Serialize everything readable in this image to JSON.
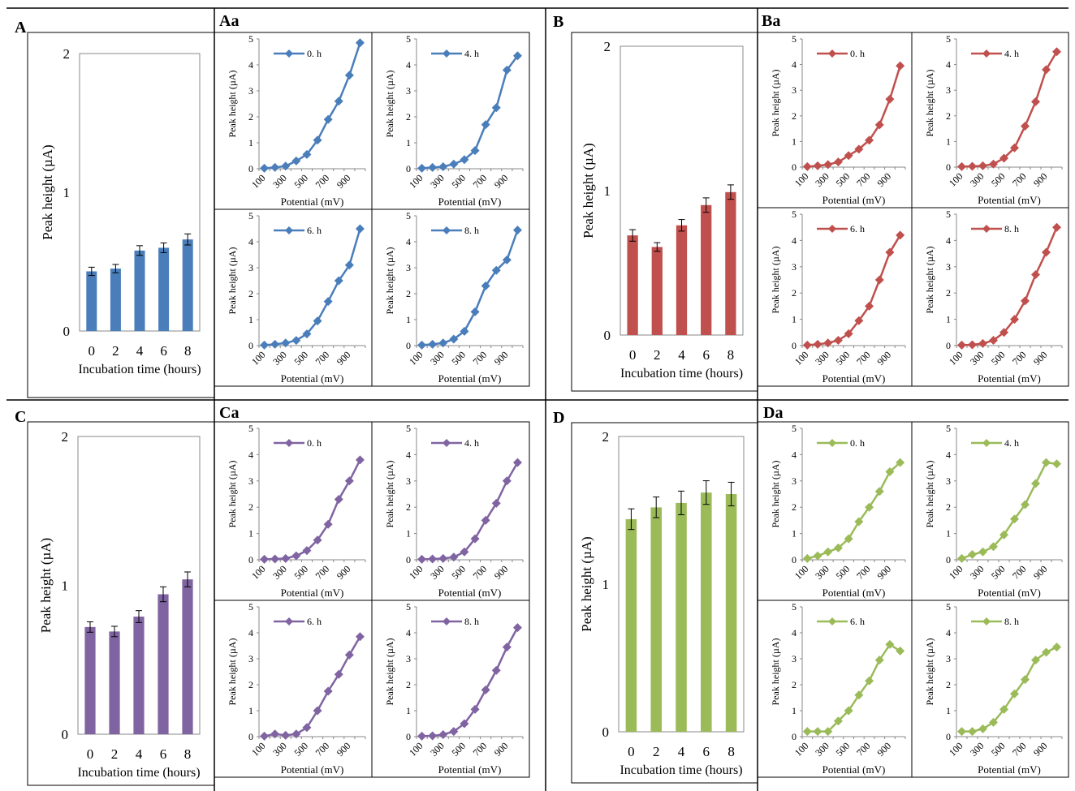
{
  "colors": {
    "A": "#4a7ebb",
    "B": "#c0504d",
    "C": "#8064a2",
    "D": "#9bbb59"
  },
  "chart_data": [
    {
      "id": "A",
      "label": "A",
      "type": "bar",
      "color": "#4a7ebb",
      "categories": [
        "0",
        "2",
        "4",
        "6",
        "8"
      ],
      "values": [
        0.43,
        0.45,
        0.58,
        0.6,
        0.66
      ],
      "errors": [
        0.03,
        0.03,
        0.035,
        0.035,
        0.04
      ],
      "ylabel": "Peak height (µA)",
      "xlabel": "Incubation time (hours)",
      "ylim": [
        0,
        2
      ],
      "yticks": [
        "0",
        "1",
        "2"
      ]
    },
    {
      "id": "Aa",
      "label": "Aa",
      "type": "line",
      "color": "#4a7ebb",
      "ylabel": "Peak height (µA)",
      "xlabel": "Potential (mV)",
      "ylim": [
        0,
        5
      ],
      "yticks": [
        "0",
        "1",
        "2",
        "3",
        "4",
        "5"
      ],
      "xticks": [
        "100",
        "300",
        "500",
        "700",
        "900"
      ],
      "x": [
        100,
        200,
        300,
        400,
        500,
        600,
        700,
        800,
        900,
        1000
      ],
      "series": [
        {
          "name": "0. h",
          "values": [
            0.02,
            0.05,
            0.1,
            0.3,
            0.55,
            1.1,
            1.9,
            2.6,
            3.6,
            4.85
          ]
        },
        {
          "name": "4. h",
          "values": [
            0.02,
            0.05,
            0.08,
            0.18,
            0.35,
            0.7,
            1.7,
            2.35,
            3.8,
            4.35
          ]
        },
        {
          "name": "6. h",
          "values": [
            0.02,
            0.05,
            0.1,
            0.2,
            0.45,
            0.95,
            1.7,
            2.5,
            3.1,
            4.5
          ]
        },
        {
          "name": "8. h",
          "values": [
            0.02,
            0.05,
            0.1,
            0.25,
            0.55,
            1.3,
            2.3,
            2.9,
            3.3,
            4.45
          ]
        }
      ]
    },
    {
      "id": "B",
      "label": "B",
      "type": "bar",
      "color": "#c0504d",
      "categories": [
        "0",
        "2",
        "4",
        "6",
        "8"
      ],
      "values": [
        0.69,
        0.61,
        0.76,
        0.9,
        0.99
      ],
      "errors": [
        0.04,
        0.03,
        0.04,
        0.05,
        0.05
      ],
      "ylabel": "Peak height (µA)",
      "xlabel": "Incubation time (hours)",
      "ylim": [
        0,
        2
      ],
      "yticks": [
        "0",
        "1",
        "2"
      ]
    },
    {
      "id": "Ba",
      "label": "Ba",
      "type": "line",
      "color": "#c0504d",
      "ylabel": "Peak height (µA)",
      "xlabel": "Potential (mV)",
      "ylim": [
        0,
        5
      ],
      "yticks": [
        "0",
        "1",
        "2",
        "3",
        "4",
        "5"
      ],
      "xticks": [
        "100",
        "300",
        "500",
        "700",
        "900"
      ],
      "x": [
        100,
        200,
        300,
        400,
        500,
        600,
        700,
        800,
        900,
        1000
      ],
      "series": [
        {
          "name": "0. h",
          "values": [
            0.02,
            0.05,
            0.1,
            0.2,
            0.45,
            0.7,
            1.05,
            1.65,
            2.65,
            3.95
          ]
        },
        {
          "name": "4. h",
          "values": [
            0.02,
            0.03,
            0.05,
            0.12,
            0.35,
            0.75,
            1.6,
            2.55,
            3.8,
            4.5
          ]
        },
        {
          "name": "6. h",
          "values": [
            0.02,
            0.05,
            0.1,
            0.2,
            0.45,
            0.95,
            1.5,
            2.5,
            3.55,
            4.2
          ]
        },
        {
          "name": "8. h",
          "values": [
            0.02,
            0.03,
            0.08,
            0.2,
            0.5,
            1.0,
            1.7,
            2.7,
            3.55,
            4.5
          ]
        }
      ]
    },
    {
      "id": "C",
      "label": "C",
      "type": "bar",
      "color": "#8064a2",
      "categories": [
        "0",
        "2",
        "4",
        "6",
        "8"
      ],
      "values": [
        0.72,
        0.69,
        0.79,
        0.94,
        1.04
      ],
      "errors": [
        0.035,
        0.035,
        0.04,
        0.05,
        0.05
      ],
      "ylabel": "Peak height (µA)",
      "xlabel": "Incubation time (hours)",
      "ylim": [
        0,
        2
      ],
      "yticks": [
        "0",
        "1",
        "2"
      ]
    },
    {
      "id": "Ca",
      "label": "Ca",
      "type": "line",
      "color": "#8064a2",
      "ylabel": "Peak height (µA)",
      "xlabel": "Potential (mV)",
      "ylim": [
        0,
        5
      ],
      "yticks": [
        "0",
        "1",
        "2",
        "3",
        "4",
        "5"
      ],
      "xticks": [
        "100",
        "300",
        "500",
        "700",
        "900"
      ],
      "x": [
        100,
        200,
        300,
        400,
        500,
        600,
        700,
        800,
        900,
        1000
      ],
      "series": [
        {
          "name": "0. h",
          "values": [
            0.02,
            0.03,
            0.05,
            0.15,
            0.35,
            0.75,
            1.35,
            2.3,
            3.0,
            3.8
          ]
        },
        {
          "name": "4. h",
          "values": [
            0.02,
            0.03,
            0.05,
            0.1,
            0.3,
            0.8,
            1.5,
            2.15,
            3.0,
            3.7
          ]
        },
        {
          "name": "6. h",
          "values": [
            0.02,
            0.1,
            0.05,
            0.1,
            0.35,
            1.0,
            1.75,
            2.4,
            3.15,
            3.85
          ]
        },
        {
          "name": "8. h",
          "values": [
            0.02,
            0.03,
            0.08,
            0.2,
            0.5,
            1.05,
            1.8,
            2.55,
            3.45,
            4.2
          ]
        }
      ]
    },
    {
      "id": "D",
      "label": "D",
      "type": "bar",
      "color": "#9bbb59",
      "categories": [
        "0",
        "2",
        "4",
        "6",
        "8"
      ],
      "values": [
        1.44,
        1.52,
        1.55,
        1.62,
        1.61
      ],
      "errors": [
        0.07,
        0.07,
        0.08,
        0.08,
        0.08
      ],
      "ylabel": "Peak height (µA)",
      "xlabel": "Incubation time (hours)",
      "ylim": [
        0,
        2
      ],
      "yticks": [
        "0",
        "1",
        "2"
      ]
    },
    {
      "id": "Da",
      "label": "Da",
      "type": "line",
      "color": "#9bbb59",
      "ylabel": "Peak height (µA)",
      "xlabel": "Potential (mV)",
      "ylim": [
        0,
        5
      ],
      "yticks": [
        "0",
        "1",
        "2",
        "3",
        "4",
        "5"
      ],
      "xticks": [
        "100",
        "300",
        "500",
        "700",
        "900"
      ],
      "x": [
        100,
        200,
        300,
        400,
        500,
        600,
        700,
        800,
        900,
        1000
      ],
      "series": [
        {
          "name": "0. h",
          "values": [
            0.05,
            0.15,
            0.3,
            0.45,
            0.8,
            1.45,
            2.0,
            2.6,
            3.35,
            3.7
          ]
        },
        {
          "name": "4. h",
          "values": [
            0.05,
            0.2,
            0.3,
            0.5,
            0.95,
            1.55,
            2.1,
            2.9,
            3.7,
            3.65
          ]
        },
        {
          "name": "6. h",
          "values": [
            0.2,
            0.2,
            0.2,
            0.6,
            1.0,
            1.6,
            2.15,
            2.95,
            3.55,
            3.3
          ]
        },
        {
          "name": "8. h",
          "values": [
            0.2,
            0.2,
            0.3,
            0.55,
            1.05,
            1.65,
            2.2,
            2.95,
            3.25,
            3.45
          ]
        }
      ]
    }
  ]
}
